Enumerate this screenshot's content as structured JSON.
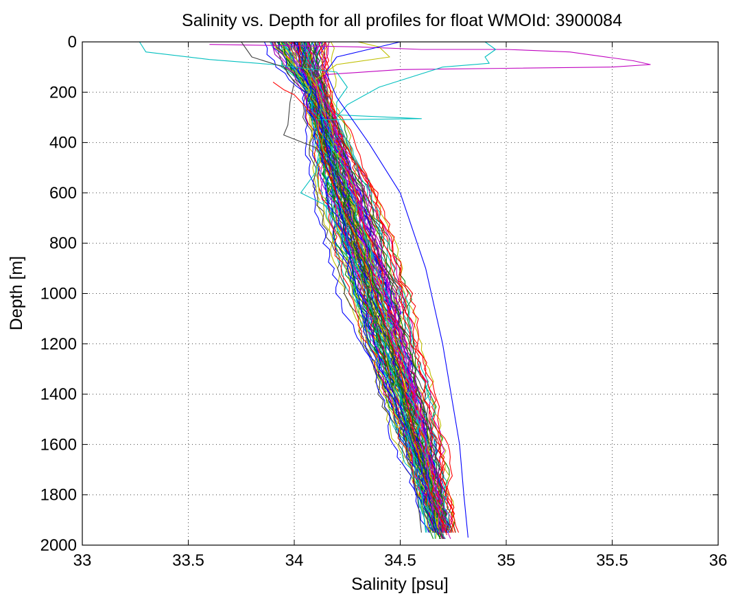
{
  "chart_data": {
    "type": "line",
    "title": "Salinity vs. Depth for all profiles for float WMOId: 3900084",
    "xlabel": "Salinity [psu]",
    "ylabel": "Depth [m]",
    "xlim": [
      33,
      36
    ],
    "ylim": [
      0,
      2000
    ],
    "y_reversed": true,
    "grid": true,
    "legend": "none",
    "x_ticks": [
      "33",
      "33.5",
      "34",
      "34.5",
      "35",
      "35.5",
      "36"
    ],
    "y_ticks": [
      "0",
      "200",
      "400",
      "600",
      "800",
      "1000",
      "1200",
      "1400",
      "1600",
      "1800",
      "2000"
    ],
    "colors": [
      "#0000ff",
      "#008000",
      "#ff0000",
      "#00bfbf",
      "#bf00bf",
      "#bfbf00",
      "#404040"
    ],
    "highlighted_profiles": [
      {
        "color": "#bf00bf",
        "points": [
          [
            33.6,
            10
          ],
          [
            34.3,
            20
          ],
          [
            34.6,
            30
          ],
          [
            35.0,
            30
          ],
          [
            35.15,
            35
          ],
          [
            35.3,
            40
          ],
          [
            35.6,
            75
          ],
          [
            35.68,
            90
          ],
          [
            35.5,
            100
          ],
          [
            35.0,
            105
          ],
          [
            34.5,
            110
          ],
          [
            34.15,
            130
          ],
          [
            34.1,
            180
          ],
          [
            34.2,
            300
          ],
          [
            34.3,
            500
          ],
          [
            34.45,
            1000
          ],
          [
            34.6,
            1500
          ],
          [
            34.7,
            1950
          ]
        ]
      },
      {
        "color": "#00bfbf",
        "points": [
          [
            33.27,
            0
          ],
          [
            33.3,
            40
          ],
          [
            33.6,
            70
          ],
          [
            33.9,
            90
          ],
          [
            34.2,
            120
          ],
          [
            34.25,
            180
          ],
          [
            34.2,
            240
          ],
          [
            34.2,
            290
          ],
          [
            34.6,
            305
          ],
          [
            34.1,
            310
          ],
          [
            34.12,
            420
          ],
          [
            34.1,
            520
          ],
          [
            34.03,
            600
          ],
          [
            34.15,
            650
          ],
          [
            34.3,
            900
          ],
          [
            34.5,
            1400
          ],
          [
            34.6,
            1800
          ],
          [
            34.62,
            1950
          ]
        ]
      },
      {
        "color": "#00bfbf",
        "points": [
          [
            34.9,
            0
          ],
          [
            34.95,
            30
          ],
          [
            34.9,
            60
          ],
          [
            34.92,
            85
          ],
          [
            34.7,
            100
          ],
          [
            34.4,
            180
          ],
          [
            34.25,
            250
          ],
          [
            34.2,
            300
          ],
          [
            34.3,
            500
          ]
        ]
      },
      {
        "color": "#bfbf00",
        "points": [
          [
            34.3,
            0
          ],
          [
            34.4,
            20
          ],
          [
            34.45,
            60
          ],
          [
            34.2,
            90
          ],
          [
            34.1,
            150
          ],
          [
            34.15,
            300
          ]
        ]
      },
      {
        "color": "#404040",
        "points": [
          [
            33.75,
            0
          ],
          [
            33.8,
            60
          ],
          [
            33.95,
            100
          ],
          [
            34.0,
            160
          ],
          [
            33.98,
            240
          ],
          [
            33.97,
            330
          ],
          [
            33.95,
            370
          ],
          [
            34.1,
            420
          ],
          [
            34.2,
            520
          ],
          [
            34.35,
            1000
          ],
          [
            34.5,
            1500
          ],
          [
            34.58,
            1800
          ],
          [
            34.6,
            1950
          ]
        ]
      },
      {
        "color": "#0000ff",
        "points": [
          [
            34.5,
            0
          ],
          [
            34.35,
            30
          ],
          [
            34.2,
            60
          ],
          [
            34.15,
            120
          ],
          [
            34.2,
            220
          ],
          [
            34.35,
            400
          ],
          [
            34.5,
            600
          ],
          [
            34.62,
            900
          ],
          [
            34.7,
            1200
          ],
          [
            34.78,
            1600
          ],
          [
            34.8,
            1800
          ],
          [
            34.82,
            1970
          ]
        ]
      },
      {
        "color": "#ff0000",
        "points": [
          [
            33.9,
            160
          ],
          [
            33.95,
            190
          ],
          [
            34.0,
            210
          ],
          [
            34.1,
            300
          ],
          [
            34.15,
            500
          ],
          [
            34.3,
            800
          ],
          [
            34.5,
            1300
          ],
          [
            34.6,
            1700
          ],
          [
            34.72,
            1960
          ]
        ]
      },
      {
        "color": "#0000ff",
        "points": [
          [
            34.0,
            100
          ],
          [
            34.1,
            200
          ],
          [
            34.15,
            400
          ],
          [
            34.25,
            800
          ],
          [
            34.35,
            1200
          ],
          [
            34.5,
            1450
          ],
          [
            34.6,
            1700
          ],
          [
            34.68,
            1960
          ]
        ]
      }
    ],
    "profile_bundle": {
      "count": 110,
      "note": "main bundle: salinity at each depth level",
      "depths": [
        0,
        100,
        200,
        400,
        600,
        800,
        1000,
        1200,
        1400,
        1600,
        1800,
        1975
      ],
      "mean_salinity": [
        34.02,
        34.05,
        34.1,
        34.17,
        34.24,
        34.31,
        34.38,
        34.45,
        34.52,
        34.59,
        34.65,
        34.7
      ],
      "spread": [
        0.05,
        0.05,
        0.04,
        0.06,
        0.09,
        0.1,
        0.1,
        0.09,
        0.08,
        0.07,
        0.05,
        0.04
      ]
    }
  }
}
